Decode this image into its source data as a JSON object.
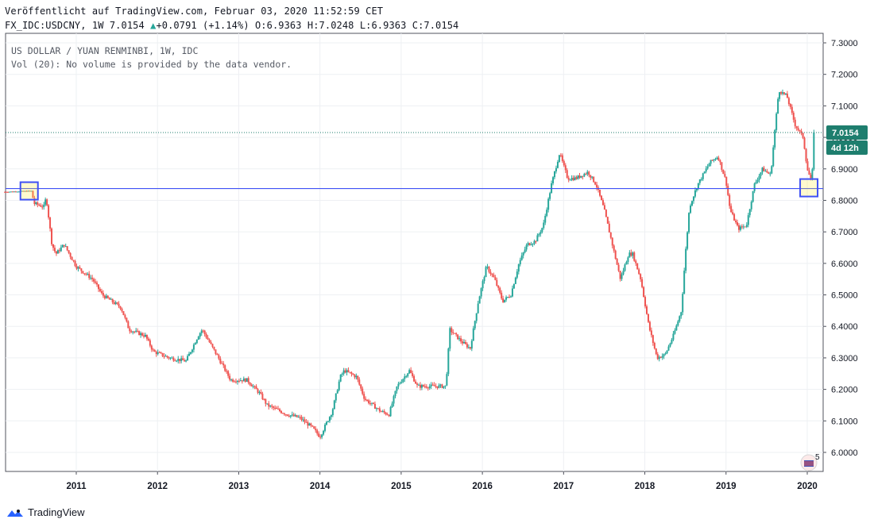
{
  "header": {
    "published": "Veröffentlicht auf TradingView.com, Februar 03, 2020 11:52:59 CET",
    "symbol": "FX_IDC:USDCNY, 1W 7.0154",
    "change_arrow": "▲",
    "change": "+0.0791 (+1.14%)",
    "ohlc": "O:6.9363 H:7.0248 L:6.9363 C:7.0154"
  },
  "legend": {
    "line1": "US DOLLAR / YUAN RENMINBI, 1W, IDC",
    "line2": "Vol (20): No volume is provided by the data vendor."
  },
  "price_tag": {
    "value": "7.0154",
    "countdown": "4d 12h"
  },
  "footer": {
    "brand": "TradingView"
  },
  "colors": {
    "up": "#26a69a",
    "down": "#ef5350",
    "wick": "#8a8f98",
    "hline": "#3f51f5",
    "tag": "#1e7e6e"
  },
  "chart_data": {
    "type": "candlestick",
    "y_ticks": [
      "6.0000",
      "6.1000",
      "6.2000",
      "6.3000",
      "6.4000",
      "6.5000",
      "6.6000",
      "6.7000",
      "6.8000",
      "6.9000",
      "7.0000",
      "7.1000",
      "7.2000",
      "7.3000"
    ],
    "x_ticks": [
      "2011",
      "2012",
      "2013",
      "2014",
      "2015",
      "2016",
      "2017",
      "2018",
      "2019",
      "2020"
    ],
    "ylim": [
      5.92,
      7.32
    ],
    "x_range": [
      2010.12,
      2020.22
    ],
    "last_close": 7.0154,
    "horizontal_line": 6.8375,
    "highlights": [
      {
        "x": 2010.42,
        "y": 6.83
      },
      {
        "x": 2020.02,
        "y": 6.84
      }
    ],
    "series": [
      {
        "x": 2010.12,
        "y": 6.827
      },
      {
        "x": 2010.45,
        "y": 6.83
      },
      {
        "x": 2010.48,
        "y": 6.79
      },
      {
        "x": 2010.6,
        "y": 6.78
      },
      {
        "x": 2010.63,
        "y": 6.81
      },
      {
        "x": 2010.7,
        "y": 6.66
      },
      {
        "x": 2010.75,
        "y": 6.63
      },
      {
        "x": 2010.85,
        "y": 6.66
      },
      {
        "x": 2011.0,
        "y": 6.59
      },
      {
        "x": 2011.2,
        "y": 6.55
      },
      {
        "x": 2011.32,
        "y": 6.5
      },
      {
        "x": 2011.55,
        "y": 6.46
      },
      {
        "x": 2011.65,
        "y": 6.39
      },
      {
        "x": 2011.85,
        "y": 6.37
      },
      {
        "x": 2011.95,
        "y": 6.32
      },
      {
        "x": 2012.15,
        "y": 6.3
      },
      {
        "x": 2012.35,
        "y": 6.29
      },
      {
        "x": 2012.5,
        "y": 6.37
      },
      {
        "x": 2012.55,
        "y": 6.39
      },
      {
        "x": 2012.75,
        "y": 6.3
      },
      {
        "x": 2012.9,
        "y": 6.23
      },
      {
        "x": 2013.1,
        "y": 6.23
      },
      {
        "x": 2013.25,
        "y": 6.19
      },
      {
        "x": 2013.35,
        "y": 6.15
      },
      {
        "x": 2013.6,
        "y": 6.12
      },
      {
        "x": 2013.75,
        "y": 6.11
      },
      {
        "x": 2013.9,
        "y": 6.08
      },
      {
        "x": 2014.0,
        "y": 6.05
      },
      {
        "x": 2014.15,
        "y": 6.13
      },
      {
        "x": 2014.25,
        "y": 6.24
      },
      {
        "x": 2014.3,
        "y": 6.26
      },
      {
        "x": 2014.45,
        "y": 6.24
      },
      {
        "x": 2014.55,
        "y": 6.17
      },
      {
        "x": 2014.75,
        "y": 6.13
      },
      {
        "x": 2014.85,
        "y": 6.12
      },
      {
        "x": 2014.95,
        "y": 6.21
      },
      {
        "x": 2015.1,
        "y": 6.26
      },
      {
        "x": 2015.2,
        "y": 6.21
      },
      {
        "x": 2015.55,
        "y": 6.21
      },
      {
        "x": 2015.6,
        "y": 6.39
      },
      {
        "x": 2015.75,
        "y": 6.35
      },
      {
        "x": 2015.85,
        "y": 6.33
      },
      {
        "x": 2015.95,
        "y": 6.48
      },
      {
        "x": 2016.05,
        "y": 6.59
      },
      {
        "x": 2016.15,
        "y": 6.55
      },
      {
        "x": 2016.25,
        "y": 6.48
      },
      {
        "x": 2016.35,
        "y": 6.5
      },
      {
        "x": 2016.45,
        "y": 6.6
      },
      {
        "x": 2016.55,
        "y": 6.66
      },
      {
        "x": 2016.65,
        "y": 6.67
      },
      {
        "x": 2016.75,
        "y": 6.72
      },
      {
        "x": 2016.85,
        "y": 6.85
      },
      {
        "x": 2016.95,
        "y": 6.95
      },
      {
        "x": 2017.05,
        "y": 6.87
      },
      {
        "x": 2017.15,
        "y": 6.87
      },
      {
        "x": 2017.3,
        "y": 6.89
      },
      {
        "x": 2017.4,
        "y": 6.85
      },
      {
        "x": 2017.5,
        "y": 6.77
      },
      {
        "x": 2017.6,
        "y": 6.66
      },
      {
        "x": 2017.7,
        "y": 6.55
      },
      {
        "x": 2017.8,
        "y": 6.63
      },
      {
        "x": 2017.85,
        "y": 6.63
      },
      {
        "x": 2017.95,
        "y": 6.55
      },
      {
        "x": 2018.05,
        "y": 6.4
      },
      {
        "x": 2018.15,
        "y": 6.3
      },
      {
        "x": 2018.25,
        "y": 6.31
      },
      {
        "x": 2018.35,
        "y": 6.37
      },
      {
        "x": 2018.45,
        "y": 6.45
      },
      {
        "x": 2018.5,
        "y": 6.63
      },
      {
        "x": 2018.55,
        "y": 6.78
      },
      {
        "x": 2018.65,
        "y": 6.85
      },
      {
        "x": 2018.8,
        "y": 6.92
      },
      {
        "x": 2018.9,
        "y": 6.94
      },
      {
        "x": 2019.0,
        "y": 6.86
      },
      {
        "x": 2019.05,
        "y": 6.77
      },
      {
        "x": 2019.15,
        "y": 6.71
      },
      {
        "x": 2019.25,
        "y": 6.72
      },
      {
        "x": 2019.35,
        "y": 6.85
      },
      {
        "x": 2019.45,
        "y": 6.9
      },
      {
        "x": 2019.55,
        "y": 6.88
      },
      {
        "x": 2019.6,
        "y": 7.02
      },
      {
        "x": 2019.65,
        "y": 7.15
      },
      {
        "x": 2019.75,
        "y": 7.13
      },
      {
        "x": 2019.85,
        "y": 7.04
      },
      {
        "x": 2019.95,
        "y": 7.0
      },
      {
        "x": 2020.0,
        "y": 6.9
      },
      {
        "x": 2020.05,
        "y": 6.86
      },
      {
        "x": 2020.08,
        "y": 6.94
      },
      {
        "x": 2020.1,
        "y": 7.0154
      }
    ]
  }
}
